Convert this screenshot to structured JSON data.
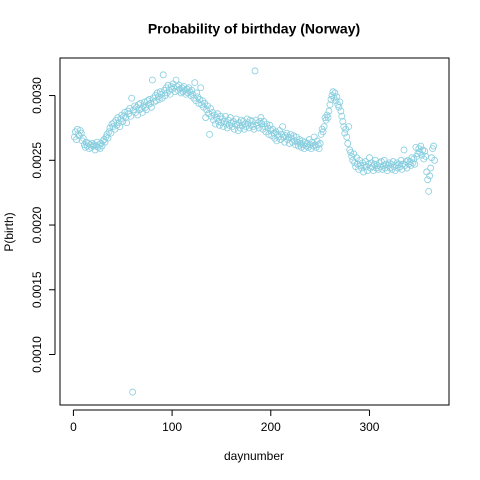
{
  "chart_data": {
    "type": "scatter",
    "title": "Probability of birthday (Norway)",
    "x_label": "daynumber",
    "y_label": "P(birth)",
    "color": "#87cedf",
    "grid": false,
    "xlim": [
      -13.6,
      380.6
    ],
    "xticks": [
      0,
      100,
      200,
      300
    ],
    "ylim": [
      0.00061,
      0.00329
    ],
    "yticks": [
      {
        "value": 0.001,
        "label": "0.0010"
      },
      0.0015,
      {
        "value": 0.002,
        "label": "0.0020"
      },
      0.0025,
      {
        "value": 0.003,
        "label": "0.0030"
      }
    ],
    "x": [
      1,
      2,
      3,
      4,
      5,
      6,
      7,
      8,
      9,
      10,
      11,
      12,
      13,
      14,
      15,
      16,
      17,
      18,
      19,
      20,
      21,
      22,
      23,
      24,
      25,
      26,
      27,
      28,
      29,
      30,
      31,
      32,
      33,
      34,
      35,
      36,
      37,
      38,
      39,
      40,
      41,
      42,
      43,
      44,
      45,
      46,
      47,
      48,
      49,
      50,
      51,
      52,
      53,
      54,
      55,
      56,
      57,
      58,
      59,
      60,
      61,
      62,
      63,
      64,
      65,
      66,
      67,
      68,
      69,
      70,
      71,
      72,
      73,
      74,
      75,
      76,
      77,
      78,
      79,
      80,
      81,
      82,
      83,
      84,
      85,
      86,
      87,
      88,
      89,
      90,
      91,
      92,
      93,
      94,
      95,
      96,
      97,
      98,
      99,
      100,
      101,
      102,
      103,
      104,
      105,
      106,
      107,
      108,
      109,
      110,
      111,
      112,
      113,
      114,
      115,
      116,
      117,
      118,
      119,
      120,
      121,
      122,
      123,
      124,
      125,
      126,
      127,
      128,
      129,
      130,
      131,
      132,
      133,
      134,
      135,
      136,
      137,
      138,
      139,
      140,
      141,
      142,
      143,
      144,
      145,
      146,
      147,
      148,
      149,
      150,
      151,
      152,
      153,
      154,
      155,
      156,
      157,
      158,
      159,
      160,
      161,
      162,
      163,
      164,
      165,
      166,
      167,
      168,
      169,
      170,
      171,
      172,
      173,
      174,
      175,
      176,
      177,
      178,
      179,
      180,
      181,
      182,
      183,
      184,
      185,
      186,
      187,
      188,
      189,
      190,
      191,
      192,
      193,
      194,
      195,
      196,
      197,
      198,
      199,
      200,
      201,
      202,
      203,
      204,
      205,
      206,
      207,
      208,
      209,
      210,
      211,
      212,
      213,
      214,
      215,
      216,
      217,
      218,
      219,
      220,
      221,
      222,
      223,
      224,
      225,
      226,
      227,
      228,
      229,
      230,
      231,
      232,
      233,
      234,
      235,
      236,
      237,
      238,
      239,
      240,
      241,
      242,
      243,
      244,
      245,
      246,
      247,
      248,
      249,
      250,
      251,
      252,
      253,
      254,
      255,
      256,
      257,
      258,
      259,
      260,
      261,
      262,
      263,
      264,
      265,
      266,
      267,
      268,
      269,
      270,
      271,
      272,
      273,
      274,
      275,
      276,
      277,
      278,
      279,
      280,
      281,
      282,
      283,
      284,
      285,
      286,
      287,
      288,
      289,
      290,
      291,
      292,
      293,
      294,
      295,
      296,
      297,
      298,
      299,
      300,
      301,
      302,
      303,
      304,
      305,
      306,
      307,
      308,
      309,
      310,
      311,
      312,
      313,
      314,
      315,
      316,
      317,
      318,
      319,
      320,
      321,
      322,
      323,
      324,
      325,
      326,
      327,
      328,
      329,
      330,
      331,
      332,
      333,
      334,
      335,
      336,
      337,
      338,
      339,
      340,
      341,
      342,
      343,
      344,
      345,
      346,
      347,
      348,
      349,
      350,
      351,
      352,
      353,
      354,
      355,
      356,
      357,
      358,
      359,
      360,
      361,
      362,
      363,
      364,
      365,
      366
    ],
    "values": [
      0.00268,
      0.00272,
      0.00266,
      0.00274,
      0.0027,
      0.00269,
      0.00273,
      0.00271,
      0.00265,
      0.00267,
      0.00262,
      0.0026,
      0.00264,
      0.00261,
      0.00263,
      0.00259,
      0.00262,
      0.0026,
      0.00263,
      0.00261,
      0.00262,
      0.00258,
      0.00261,
      0.00264,
      0.0026,
      0.00262,
      0.00259,
      0.00263,
      0.00261,
      0.00265,
      0.00266,
      0.00264,
      0.00268,
      0.0027,
      0.00267,
      0.00272,
      0.00275,
      0.00271,
      0.00278,
      0.00276,
      0.00279,
      0.00274,
      0.00281,
      0.00277,
      0.00283,
      0.00279,
      0.00276,
      0.00282,
      0.00285,
      0.0028,
      0.00284,
      0.00287,
      0.00283,
      0.00279,
      0.00288,
      0.00286,
      0.0029,
      0.00284,
      0.00298,
      0.00071,
      0.00289,
      0.00292,
      0.00287,
      0.00291,
      0.00285,
      0.00293,
      0.00289,
      0.00294,
      0.0029,
      0.00287,
      0.00292,
      0.00295,
      0.00291,
      0.00289,
      0.00296,
      0.00293,
      0.00297,
      0.00294,
      0.00291,
      0.00312,
      0.00298,
      0.00295,
      0.003,
      0.00296,
      0.00302,
      0.00299,
      0.00297,
      0.00303,
      0.00301,
      0.00298,
      0.00316,
      0.00304,
      0.003,
      0.00306,
      0.00302,
      0.00308,
      0.00304,
      0.00301,
      0.00307,
      0.00305,
      0.00309,
      0.00306,
      0.00303,
      0.00312,
      0.00307,
      0.00304,
      0.00308,
      0.00305,
      0.00302,
      0.00306,
      0.00303,
      0.00307,
      0.00304,
      0.00301,
      0.00305,
      0.00302,
      0.00306,
      0.00303,
      0.003,
      0.00304,
      0.00301,
      0.00298,
      0.0031,
      0.00296,
      0.00302,
      0.00299,
      0.00294,
      0.00297,
      0.00306,
      0.00293,
      0.00296,
      0.00291,
      0.00294,
      0.00283,
      0.00289,
      0.00292,
      0.00286,
      0.0027,
      0.0029,
      0.00284,
      0.00287,
      0.00281,
      0.00285,
      0.00278,
      0.00283,
      0.00286,
      0.0028,
      0.00277,
      0.00284,
      0.00279,
      0.00282,
      0.00276,
      0.0028,
      0.00284,
      0.00278,
      0.00275,
      0.00281,
      0.00277,
      0.00283,
      0.00279,
      0.00276,
      0.0028,
      0.00274,
      0.00278,
      0.00282,
      0.00277,
      0.00273,
      0.00279,
      0.00275,
      0.00281,
      0.00277,
      0.0028,
      0.00274,
      0.00278,
      0.00276,
      0.00282,
      0.00279,
      0.00275,
      0.00281,
      0.00277,
      0.0028,
      0.00276,
      0.00274,
      0.00319,
      0.00281,
      0.00277,
      0.00279,
      0.00275,
      0.0028,
      0.00283,
      0.00278,
      0.00274,
      0.0028,
      0.00276,
      0.00272,
      0.00278,
      0.00275,
      0.0027,
      0.00277,
      0.00273,
      0.00269,
      0.00274,
      0.00271,
      0.00267,
      0.00272,
      0.00265,
      0.0027,
      0.00268,
      0.00273,
      0.00266,
      0.0027,
      0.00276,
      0.00268,
      0.00264,
      0.00269,
      0.00271,
      0.00266,
      0.00268,
      0.00263,
      0.0027,
      0.00267,
      0.00264,
      0.00269,
      0.00265,
      0.00262,
      0.00268,
      0.00264,
      0.00261,
      0.00266,
      0.00263,
      0.0026,
      0.00265,
      0.00262,
      0.00259,
      0.00264,
      0.00261,
      0.00263,
      0.0026,
      0.00266,
      0.00262,
      0.00259,
      0.00264,
      0.00261,
      0.00268,
      0.00262,
      0.0026,
      0.00265,
      0.00262,
      0.00259,
      0.00263,
      0.0027,
      0.00274,
      0.00272,
      0.00276,
      0.00283,
      0.00281,
      0.00285,
      0.00283,
      0.00288,
      0.00293,
      0.00297,
      0.003,
      0.00303,
      0.00298,
      0.00302,
      0.00296,
      0.00299,
      0.00293,
      0.00291,
      0.00295,
      0.00288,
      0.00284,
      0.0028,
      0.00276,
      0.00271,
      0.00274,
      0.00268,
      0.00263,
      0.00276,
      0.00258,
      0.00256,
      0.00253,
      0.0025,
      0.00255,
      0.00248,
      0.00245,
      0.00252,
      0.00247,
      0.00243,
      0.0025,
      0.00246,
      0.00244,
      0.00248,
      0.00241,
      0.00246,
      0.00249,
      0.00245,
      0.00242,
      0.00247,
      0.00252,
      0.00244,
      0.00248,
      0.00245,
      0.00242,
      0.00247,
      0.0025,
      0.00244,
      0.00246,
      0.00243,
      0.00248,
      0.00245,
      0.00249,
      0.00243,
      0.00246,
      0.0025,
      0.00244,
      0.00247,
      0.00242,
      0.00246,
      0.00248,
      0.00244,
      0.00247,
      0.00243,
      0.00249,
      0.00245,
      0.00242,
      0.00246,
      0.00248,
      0.00244,
      0.00247,
      0.00245,
      0.0025,
      0.00243,
      0.00247,
      0.00258,
      0.00246,
      0.00249,
      0.00244,
      0.0025,
      0.00247,
      0.00249,
      0.00246,
      0.00252,
      0.00248,
      0.00251,
      0.00247,
      0.0026,
      0.00253,
      0.00255,
      0.00259,
      0.00256,
      0.00261,
      0.00254,
      0.00258,
      0.00251,
      0.00257,
      0.00253,
      0.00241,
      0.00235,
      0.00226,
      0.00238,
      0.00244,
      0.00252,
      0.00259,
      0.00261,
      0.0025
    ]
  }
}
